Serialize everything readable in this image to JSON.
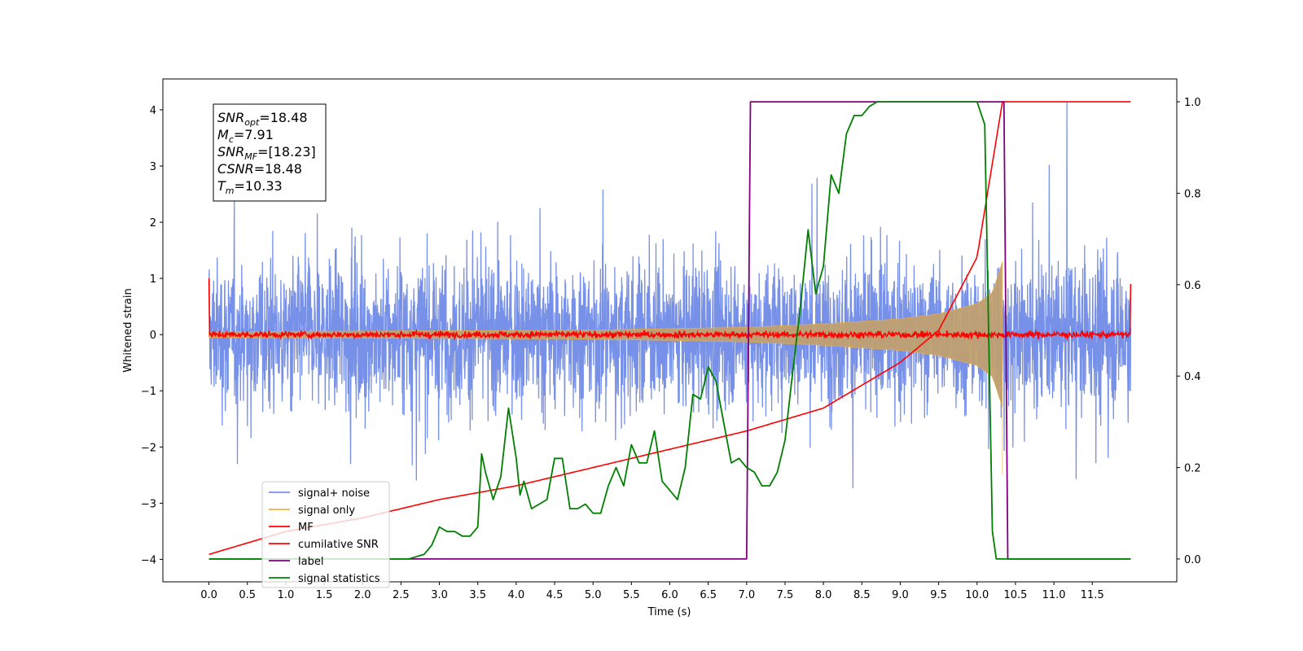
{
  "chart_data": {
    "type": "line",
    "title": "",
    "xlabel": "Time (s)",
    "ylabel": "Whitened strain",
    "xlim": [
      -0.6,
      12.6
    ],
    "ylim": [
      -4.4,
      4.55
    ],
    "ylim_right": [
      -0.05,
      1.05
    ],
    "x_ticks": [
      "0.0",
      "0.5",
      "1.0",
      "1.5",
      "2.0",
      "2.5",
      "3.0",
      "3.5",
      "4.0",
      "4.5",
      "5.0",
      "5.5",
      "6.0",
      "6.5",
      "7.0",
      "7.5",
      "8.0",
      "8.5",
      "9.0",
      "9.5",
      "10.0",
      "10.5",
      "11.0",
      "11.5"
    ],
    "y_ticks": [
      "4",
      "3",
      "2",
      "1",
      "0",
      "−1",
      "−2",
      "−3",
      "−4"
    ],
    "y_ticks_right": [
      "1.0",
      "0.8",
      "0.6",
      "0.4",
      "0.2",
      "0.0"
    ],
    "grid": false,
    "legend_position": "lower-left",
    "info_box": {
      "lines": [
        {
          "main": "SNR",
          "sub": "opt",
          "value": "=18.48"
        },
        {
          "main": "M",
          "sub": "c",
          "value": "=7.91"
        },
        {
          "main": "SNR",
          "sub": "MF",
          "value": "=[18.23]"
        },
        {
          "main": "CSNR",
          "sub": "",
          "value": "=18.48"
        },
        {
          "main": "T",
          "sub": "m",
          "value": "=10.33"
        }
      ]
    },
    "series": [
      {
        "name": "signal+ noise",
        "color": "#7891e8",
        "axis": "left",
        "noise_amplitude": [
          -3.9,
          4.2
        ],
        "x_range": [
          0,
          12
        ]
      },
      {
        "name": "signal only",
        "color": "#c0a070",
        "axis": "left",
        "x": [
          0,
          5,
          7,
          8,
          9,
          9.5,
          10,
          10.2,
          10.33
        ],
        "envelope": [
          0.05,
          0.08,
          0.13,
          0.19,
          0.28,
          0.37,
          0.55,
          0.75,
          1.3
        ]
      },
      {
        "name": "MF",
        "color": "#ff0000",
        "axis": "left",
        "x_range": [
          0,
          12
        ],
        "baseline": 0.0,
        "edge_value": 1.0
      },
      {
        "name": "cumilative SNR",
        "color": "#ff0000",
        "axis": "right",
        "x": [
          0,
          1,
          2,
          3,
          4,
          5,
          6,
          7,
          8,
          9,
          9.5,
          10,
          10.33,
          10.34,
          12
        ],
        "values": [
          0.01,
          0.06,
          0.09,
          0.13,
          0.16,
          0.2,
          0.24,
          0.28,
          0.33,
          0.43,
          0.5,
          0.66,
          1.0,
          1.0,
          1.0
        ]
      },
      {
        "name": "label",
        "color": "#800080",
        "axis": "right",
        "x": [
          0,
          7.0,
          7.05,
          10.35,
          10.4,
          12
        ],
        "values": [
          0,
          0,
          1,
          1,
          0,
          0
        ]
      },
      {
        "name": "signal statistics",
        "color": "#008000",
        "axis": "right",
        "x": [
          0,
          2.6,
          2.8,
          2.9,
          3.0,
          3.1,
          3.2,
          3.3,
          3.4,
          3.5,
          3.55,
          3.6,
          3.7,
          3.8,
          3.9,
          4.0,
          4.05,
          4.1,
          4.2,
          4.3,
          4.4,
          4.5,
          4.6,
          4.7,
          4.8,
          4.9,
          5.0,
          5.1,
          5.2,
          5.3,
          5.4,
          5.5,
          5.6,
          5.7,
          5.8,
          5.9,
          6.0,
          6.1,
          6.2,
          6.3,
          6.4,
          6.5,
          6.6,
          6.7,
          6.8,
          6.9,
          7.0,
          7.1,
          7.2,
          7.3,
          7.4,
          7.5,
          7.6,
          7.7,
          7.8,
          7.9,
          8.0,
          8.1,
          8.2,
          8.3,
          8.4,
          8.5,
          8.6,
          8.7,
          8.8,
          8.9,
          9.0,
          9.2,
          9.5,
          10.0,
          10.1,
          10.2,
          10.25,
          10.3,
          10.35,
          10.4,
          10.5,
          12
        ],
        "values": [
          0.0,
          0.0,
          0.01,
          0.03,
          0.07,
          0.06,
          0.06,
          0.05,
          0.05,
          0.07,
          0.23,
          0.19,
          0.13,
          0.18,
          0.33,
          0.22,
          0.14,
          0.17,
          0.11,
          0.12,
          0.13,
          0.22,
          0.22,
          0.11,
          0.11,
          0.12,
          0.1,
          0.1,
          0.16,
          0.2,
          0.16,
          0.25,
          0.21,
          0.21,
          0.28,
          0.17,
          0.15,
          0.13,
          0.2,
          0.36,
          0.35,
          0.42,
          0.39,
          0.3,
          0.21,
          0.22,
          0.2,
          0.19,
          0.16,
          0.16,
          0.19,
          0.26,
          0.41,
          0.55,
          0.72,
          0.58,
          0.64,
          0.84,
          0.8,
          0.93,
          0.97,
          0.97,
          0.99,
          1.0,
          1.0,
          1.0,
          1.0,
          1.0,
          1.0,
          1.0,
          0.95,
          0.06,
          0.0,
          0.0,
          0.0,
          0.0,
          0.0,
          0.0
        ]
      }
    ]
  }
}
